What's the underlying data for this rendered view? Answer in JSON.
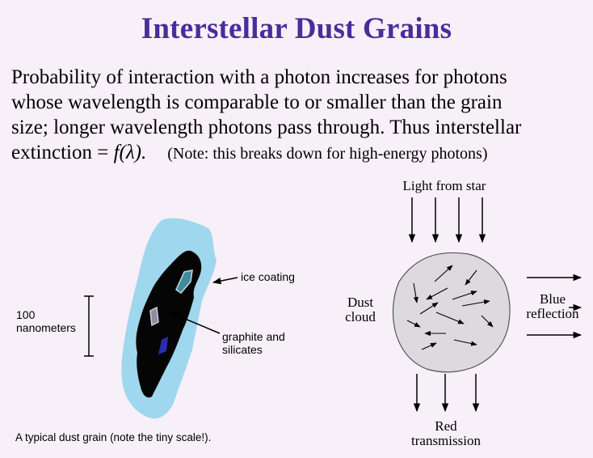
{
  "title": "Interstellar Dust Grains",
  "body": {
    "line1": "Probability of interaction with a photon increases for photons",
    "line2": "whose wavelength is comparable to or smaller than the grain",
    "line3": "size; longer wavelength photons pass through.  Thus interstellar",
    "line4_prefix": "extinction = ",
    "line4_function": "f(λ).",
    "note": "(Note: this breaks down for high-energy photons)"
  },
  "grain_diagram": {
    "scale_label_value": "100",
    "scale_label_unit": "nanometers",
    "ice_label": "ice coating",
    "core_label_line1": "graphite and",
    "core_label_line2": "silicates",
    "caption": "A typical dust grain (note the tiny scale!).",
    "colors": {
      "ice": "#9fd7ee",
      "core": "#050505",
      "inclusion_blue": "#2a2db0",
      "inclusion_teal": "#3f8a9c"
    }
  },
  "cloud_diagram": {
    "light_label": "Light from star",
    "cloud_label_line1": "Dust",
    "cloud_label_line2": "cloud",
    "reflection_label_line1": "Blue",
    "reflection_label_line2": "reflection",
    "transmission_label_line1": "Red",
    "transmission_label_line2": "transmission",
    "colors": {
      "cloud_fill": "#dcdadf",
      "cloud_stroke": "#555555"
    }
  }
}
